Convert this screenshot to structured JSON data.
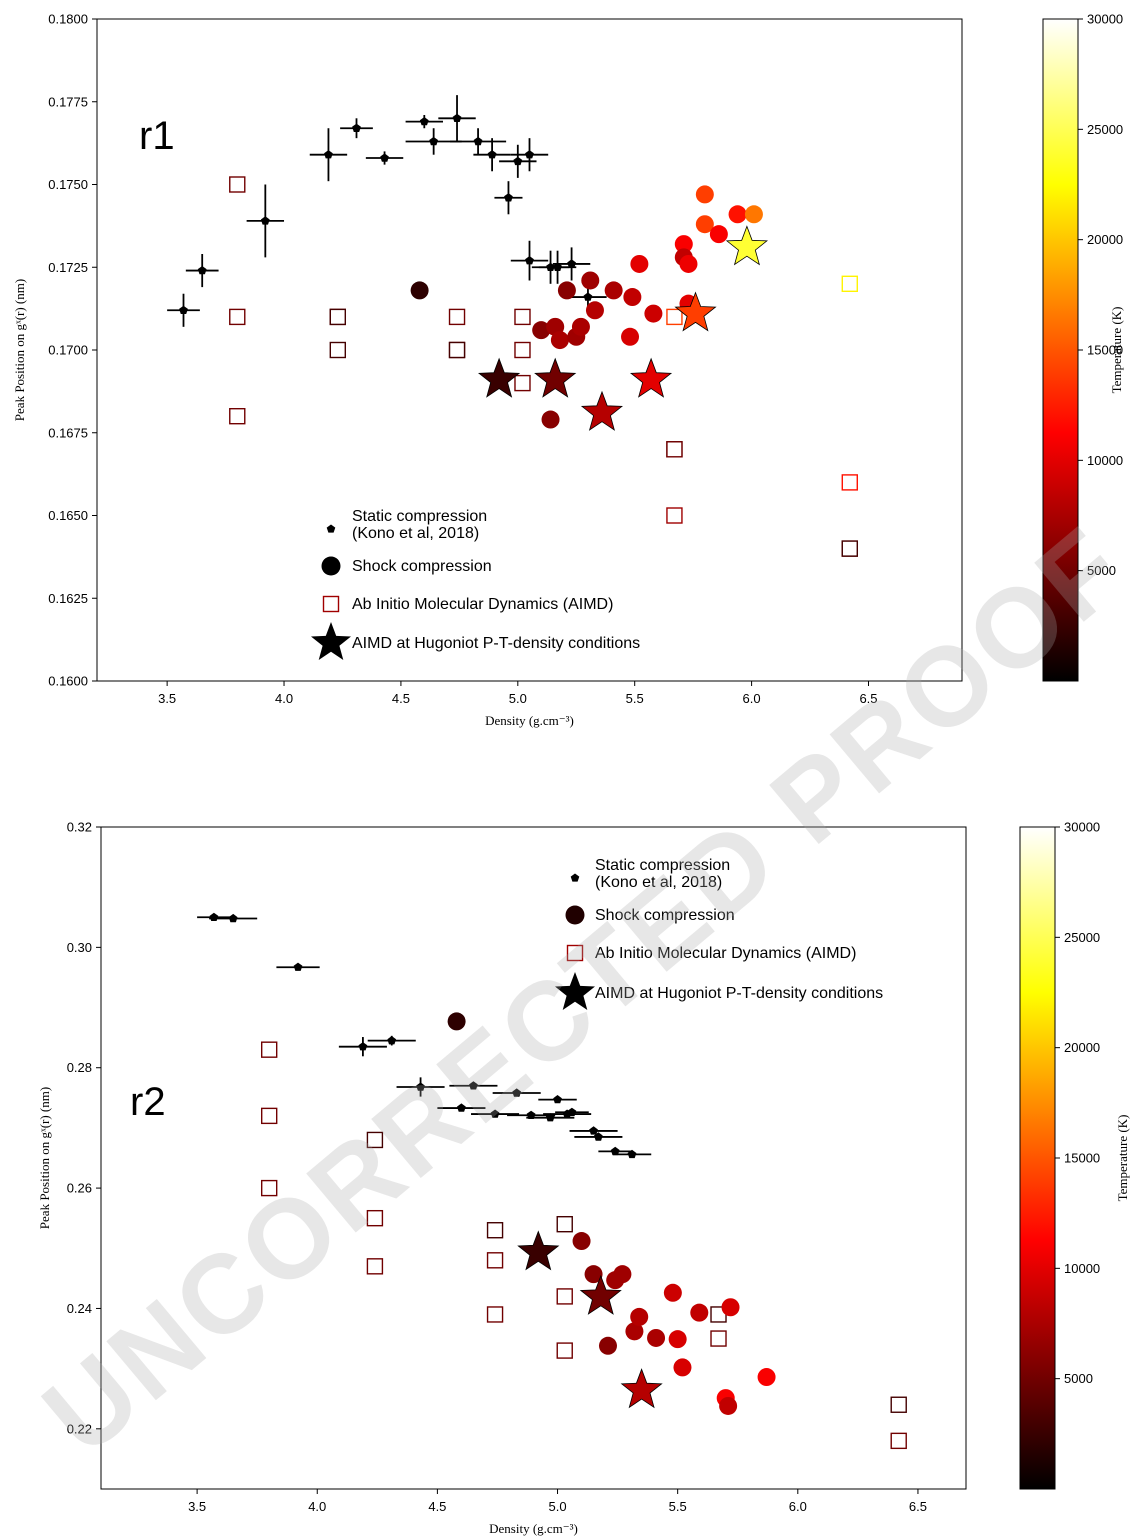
{
  "watermark": "UNCORRECTED PROOF",
  "chart_data": [
    {
      "type": "scatter",
      "panel_label": "r1",
      "xlabel": "Density (g.cm⁻³)",
      "ylabel": "Peak Position on gˣ(r) (nm)",
      "xlim": [
        3.2,
        6.9
      ],
      "ylim": [
        0.16,
        0.18
      ],
      "xticks": [
        "3.5",
        "4.0",
        "4.5",
        "5.0",
        "5.5",
        "6.0",
        "6.5"
      ],
      "yticks": [
        "0.1600",
        "0.1625",
        "0.1650",
        "0.1675",
        "0.1700",
        "0.1725",
        "0.1750",
        "0.1775",
        "0.1800"
      ],
      "colorbar": {
        "label": "Temperature (K)",
        "range": [
          0,
          30000
        ],
        "ticks": [
          "5000",
          "10000",
          "15000",
          "20000",
          "25000",
          "30000"
        ],
        "colormap": "hot"
      },
      "legend": {
        "position": "lower-center",
        "entries": [
          {
            "marker": "pentagon",
            "label_lines": [
              "Static compression",
              "(Kono et al, 2018)"
            ]
          },
          {
            "marker": "circle",
            "label_lines": [
              "Shock compression"
            ]
          },
          {
            "marker": "square",
            "label_lines": [
              "Ab Initio Molecular Dynamics (AIMD)"
            ]
          },
          {
            "marker": "star",
            "label_lines": [
              "AIMD at Hugoniot P-T-density conditions"
            ]
          }
        ]
      },
      "series": [
        {
          "name": "Static compression (Kono et al, 2018)",
          "marker": "pentagon",
          "color": "#000000",
          "points": [
            {
              "x": 3.57,
              "y": 0.1712,
              "xerr": 0.07,
              "yerr": 0.0005
            },
            {
              "x": 3.65,
              "y": 0.1724,
              "xerr": 0.07,
              "yerr": 0.0005
            },
            {
              "x": 3.92,
              "y": 0.1739,
              "xerr": 0.08,
              "yerr": 0.0011
            },
            {
              "x": 4.19,
              "y": 0.1759,
              "xerr": 0.08,
              "yerr": 0.0008
            },
            {
              "x": 4.31,
              "y": 0.1767,
              "xerr": 0.07,
              "yerr": 0.0003
            },
            {
              "x": 4.43,
              "y": 0.1758,
              "xerr": 0.08,
              "yerr": 0.0002
            },
            {
              "x": 4.6,
              "y": 0.1769,
              "xerr": 0.08,
              "yerr": 0.0002
            },
            {
              "x": 4.64,
              "y": 0.1763,
              "xerr": 0.12,
              "yerr": 0.0004
            },
            {
              "x": 4.74,
              "y": 0.177,
              "xerr": 0.08,
              "yerr": 0.0007
            },
            {
              "x": 4.83,
              "y": 0.1763,
              "xerr": 0.12,
              "yerr": 0.0004
            },
            {
              "x": 4.89,
              "y": 0.1759,
              "xerr": 0.08,
              "yerr": 0.0005
            },
            {
              "x": 4.96,
              "y": 0.1746,
              "xerr": 0.06,
              "yerr": 0.0005
            },
            {
              "x": 5.0,
              "y": 0.1757,
              "xerr": 0.08,
              "yerr": 0.0005
            },
            {
              "x": 5.05,
              "y": 0.1759,
              "xerr": 0.08,
              "yerr": 0.0005
            },
            {
              "x": 5.05,
              "y": 0.1727,
              "xerr": 0.08,
              "yerr": 0.0006
            },
            {
              "x": 5.14,
              "y": 0.1725,
              "xerr": 0.08,
              "yerr": 0.0005
            },
            {
              "x": 5.17,
              "y": 0.1725,
              "xerr": 0.08,
              "yerr": 0.0005
            },
            {
              "x": 5.23,
              "y": 0.1726,
              "xerr": 0.08,
              "yerr": 0.0005
            },
            {
              "x": 5.3,
              "y": 0.1716,
              "xerr": 0.08,
              "yerr": 0.0005
            }
          ]
        },
        {
          "name": "Shock compression",
          "marker": "circle",
          "points": [
            {
              "x": 4.58,
              "y": 0.1718,
              "temp": 2000
            },
            {
              "x": 5.1,
              "y": 0.1706,
              "temp": 6000
            },
            {
              "x": 5.14,
              "y": 0.1679,
              "temp": 6000
            },
            {
              "x": 5.16,
              "y": 0.1707,
              "temp": 7000
            },
            {
              "x": 5.18,
              "y": 0.1703,
              "temp": 7500
            },
            {
              "x": 5.21,
              "y": 0.1718,
              "temp": 6000
            },
            {
              "x": 5.25,
              "y": 0.1704,
              "temp": 7000
            },
            {
              "x": 5.27,
              "y": 0.1707,
              "temp": 7500
            },
            {
              "x": 5.31,
              "y": 0.1721,
              "temp": 7000
            },
            {
              "x": 5.33,
              "y": 0.1712,
              "temp": 8000
            },
            {
              "x": 5.41,
              "y": 0.1718,
              "temp": 7500
            },
            {
              "x": 5.48,
              "y": 0.1704,
              "temp": 9500
            },
            {
              "x": 5.49,
              "y": 0.1716,
              "temp": 8500
            },
            {
              "x": 5.52,
              "y": 0.1726,
              "temp": 10000
            },
            {
              "x": 5.58,
              "y": 0.1711,
              "temp": 9000
            },
            {
              "x": 5.71,
              "y": 0.1732,
              "temp": 11000
            },
            {
              "x": 5.71,
              "y": 0.1728,
              "temp": 8500
            },
            {
              "x": 5.73,
              "y": 0.1726,
              "temp": 10500
            },
            {
              "x": 5.73,
              "y": 0.1714,
              "temp": 10000
            },
            {
              "x": 5.8,
              "y": 0.1747,
              "temp": 14000
            },
            {
              "x": 5.8,
              "y": 0.1738,
              "temp": 14000
            },
            {
              "x": 5.86,
              "y": 0.1735,
              "temp": 11000
            },
            {
              "x": 5.94,
              "y": 0.1741,
              "temp": 12000
            },
            {
              "x": 6.01,
              "y": 0.1741,
              "temp": 16500
            }
          ]
        },
        {
          "name": "Ab Initio Molecular Dynamics (AIMD)",
          "marker": "square",
          "points": [
            {
              "x": 3.8,
              "y": 0.175,
              "temp": 5000
            },
            {
              "x": 3.8,
              "y": 0.171,
              "temp": 5000
            },
            {
              "x": 3.8,
              "y": 0.168,
              "temp": 5000
            },
            {
              "x": 4.23,
              "y": 0.171,
              "temp": 5000
            },
            {
              "x": 4.23,
              "y": 0.171,
              "temp": 3000
            },
            {
              "x": 4.23,
              "y": 0.17,
              "temp": 3000
            },
            {
              "x": 4.74,
              "y": 0.171,
              "temp": 5000
            },
            {
              "x": 4.74,
              "y": 0.17,
              "temp": 5000
            },
            {
              "x": 4.74,
              "y": 0.17,
              "temp": 3000
            },
            {
              "x": 5.02,
              "y": 0.171,
              "temp": 5000
            },
            {
              "x": 5.02,
              "y": 0.17,
              "temp": 5000
            },
            {
              "x": 5.02,
              "y": 0.169,
              "temp": 5000
            },
            {
              "x": 5.67,
              "y": 0.171,
              "temp": 14000
            },
            {
              "x": 5.67,
              "y": 0.167,
              "temp": 3000
            },
            {
              "x": 5.67,
              "y": 0.167,
              "temp": 5000
            },
            {
              "x": 5.67,
              "y": 0.165,
              "temp": 7000
            },
            {
              "x": 6.42,
              "y": 0.172,
              "temp": 22000
            },
            {
              "x": 6.42,
              "y": 0.166,
              "temp": 12000
            },
            {
              "x": 6.42,
              "y": 0.164,
              "temp": 5000
            },
            {
              "x": 6.42,
              "y": 0.164,
              "temp": 3000
            }
          ]
        },
        {
          "name": "AIMD at Hugoniot P-T-density conditions",
          "marker": "star",
          "points": [
            {
              "x": 4.92,
              "y": 0.1691,
              "temp": 2500
            },
            {
              "x": 5.16,
              "y": 0.1691,
              "temp": 5000
            },
            {
              "x": 5.36,
              "y": 0.1681,
              "temp": 8000
            },
            {
              "x": 5.57,
              "y": 0.1691,
              "temp": 10000
            },
            {
              "x": 5.76,
              "y": 0.1711,
              "temp": 14000
            },
            {
              "x": 5.98,
              "y": 0.1731,
              "temp": 24000
            }
          ]
        }
      ]
    },
    {
      "type": "scatter",
      "panel_label": "r2",
      "xlabel": "Density (g.cm⁻³)",
      "ylabel": "Peak Position on gˣ(r) (nm)",
      "xlim": [
        3.1,
        6.7
      ],
      "ylim": [
        0.21,
        0.32
      ],
      "xticks": [
        "3.5",
        "4.0",
        "4.5",
        "5.0",
        "5.5",
        "6.0",
        "6.5"
      ],
      "yticks": [
        "0.22",
        "0.24",
        "0.26",
        "0.28",
        "0.30",
        "0.32"
      ],
      "colorbar": {
        "label": "Temperature (K)",
        "range": [
          0,
          30000
        ],
        "ticks": [
          "5000",
          "10000",
          "15000",
          "20000",
          "25000",
          "30000"
        ],
        "colormap": "hot"
      },
      "legend": {
        "position": "upper-right",
        "entries": [
          {
            "marker": "pentagon",
            "label_lines": [
              "Static compression",
              "(Kono et al, 2018)"
            ]
          },
          {
            "marker": "circle",
            "label_lines": [
              "Shock compression"
            ]
          },
          {
            "marker": "square",
            "label_lines": [
              "Ab Initio Molecular Dynamics (AIMD)"
            ]
          },
          {
            "marker": "star",
            "label_lines": [
              "AIMD at Hugoniot P-T-density conditions"
            ]
          }
        ]
      },
      "series": [
        {
          "name": "Static compression (Kono et al, 2018)",
          "marker": "pentagon",
          "color": "#000000",
          "points": [
            {
              "x": 3.57,
              "y": 0.305,
              "xerr": 0.07,
              "yerr": 0.0003
            },
            {
              "x": 3.65,
              "y": 0.3048,
              "xerr": 0.1,
              "yerr": 0.0003
            },
            {
              "x": 3.92,
              "y": 0.2967,
              "xerr": 0.09,
              "yerr": 0.0005
            },
            {
              "x": 4.19,
              "y": 0.2835,
              "xerr": 0.1,
              "yerr": 0.0016
            },
            {
              "x": 4.31,
              "y": 0.2845,
              "xerr": 0.1,
              "yerr": 0.0008
            },
            {
              "x": 4.43,
              "y": 0.2768,
              "xerr": 0.1,
              "yerr": 0.0016
            },
            {
              "x": 4.6,
              "y": 0.2733,
              "xerr": 0.1,
              "yerr": 0.0004
            },
            {
              "x": 4.65,
              "y": 0.277,
              "xerr": 0.1,
              "yerr": 0.0003
            },
            {
              "x": 4.74,
              "y": 0.2723,
              "xerr": 0.1,
              "yerr": 0.0003
            },
            {
              "x": 4.83,
              "y": 0.2758,
              "xerr": 0.1,
              "yerr": 0.0003
            },
            {
              "x": 4.89,
              "y": 0.2721,
              "xerr": 0.1,
              "yerr": 0.0003
            },
            {
              "x": 4.97,
              "y": 0.2717,
              "xerr": 0.1,
              "yerr": 0.0003
            },
            {
              "x": 5.0,
              "y": 0.2747,
              "xerr": 0.08,
              "yerr": 0.0003
            },
            {
              "x": 5.04,
              "y": 0.2723,
              "xerr": 0.1,
              "yerr": 0.0003
            },
            {
              "x": 5.06,
              "y": 0.2726,
              "xerr": 0.07,
              "yerr": 0.0003
            },
            {
              "x": 5.15,
              "y": 0.2695,
              "xerr": 0.1,
              "yerr": 0.0003
            },
            {
              "x": 5.17,
              "y": 0.2685,
              "xerr": 0.1,
              "yerr": 0.0003
            },
            {
              "x": 5.24,
              "y": 0.2661,
              "xerr": 0.07,
              "yerr": 0.0003
            },
            {
              "x": 5.31,
              "y": 0.2656,
              "xerr": 0.08,
              "yerr": 0.0003
            }
          ]
        },
        {
          "name": "Shock compression",
          "marker": "circle",
          "points": [
            {
              "x": 4.58,
              "y": 0.2877,
              "temp": 2000
            },
            {
              "x": 5.1,
              "y": 0.2512,
              "temp": 6000
            },
            {
              "x": 5.15,
              "y": 0.2457,
              "temp": 6000
            },
            {
              "x": 5.21,
              "y": 0.2338,
              "temp": 6000
            },
            {
              "x": 5.24,
              "y": 0.2447,
              "temp": 7000
            },
            {
              "x": 5.27,
              "y": 0.2457,
              "temp": 7000
            },
            {
              "x": 5.32,
              "y": 0.2362,
              "temp": 7500
            },
            {
              "x": 5.34,
              "y": 0.2386,
              "temp": 8000
            },
            {
              "x": 5.41,
              "y": 0.2351,
              "temp": 7500
            },
            {
              "x": 5.48,
              "y": 0.2426,
              "temp": 9000
            },
            {
              "x": 5.5,
              "y": 0.2349,
              "temp": 9500
            },
            {
              "x": 5.52,
              "y": 0.2302,
              "temp": 9500
            },
            {
              "x": 5.59,
              "y": 0.2393,
              "temp": 8500
            },
            {
              "x": 5.7,
              "y": 0.2251,
              "temp": 11000
            },
            {
              "x": 5.71,
              "y": 0.2238,
              "temp": 8500
            },
            {
              "x": 5.72,
              "y": 0.2402,
              "temp": 9500
            },
            {
              "x": 5.87,
              "y": 0.2286,
              "temp": 11000
            }
          ]
        },
        {
          "name": "Ab Initio Molecular Dynamics (AIMD)",
          "marker": "square",
          "points": [
            {
              "x": 3.8,
              "y": 0.283,
              "temp": 5000
            },
            {
              "x": 3.8,
              "y": 0.272,
              "temp": 5000
            },
            {
              "x": 3.8,
              "y": 0.26,
              "temp": 5000
            },
            {
              "x": 4.24,
              "y": 0.268,
              "temp": 3000
            },
            {
              "x": 4.24,
              "y": 0.255,
              "temp": 5000
            },
            {
              "x": 4.24,
              "y": 0.247,
              "temp": 5000
            },
            {
              "x": 4.74,
              "y": 0.253,
              "temp": 3000
            },
            {
              "x": 4.74,
              "y": 0.248,
              "temp": 5000
            },
            {
              "x": 4.74,
              "y": 0.239,
              "temp": 5000
            },
            {
              "x": 5.03,
              "y": 0.254,
              "temp": 3000
            },
            {
              "x": 5.03,
              "y": 0.242,
              "temp": 5000
            },
            {
              "x": 5.03,
              "y": 0.233,
              "temp": 5000
            },
            {
              "x": 5.67,
              "y": 0.239,
              "temp": 3000
            },
            {
              "x": 5.67,
              "y": 0.235,
              "temp": 5000
            },
            {
              "x": 6.42,
              "y": 0.224,
              "temp": 3000
            },
            {
              "x": 6.42,
              "y": 0.218,
              "temp": 5000
            }
          ]
        },
        {
          "name": "AIMD at Hugoniot P-T-density conditions",
          "marker": "star",
          "points": [
            {
              "x": 4.92,
              "y": 0.2493,
              "temp": 2500
            },
            {
              "x": 5.18,
              "y": 0.2419,
              "temp": 5000
            },
            {
              "x": 5.35,
              "y": 0.2264,
              "temp": 8000
            }
          ]
        }
      ]
    }
  ]
}
